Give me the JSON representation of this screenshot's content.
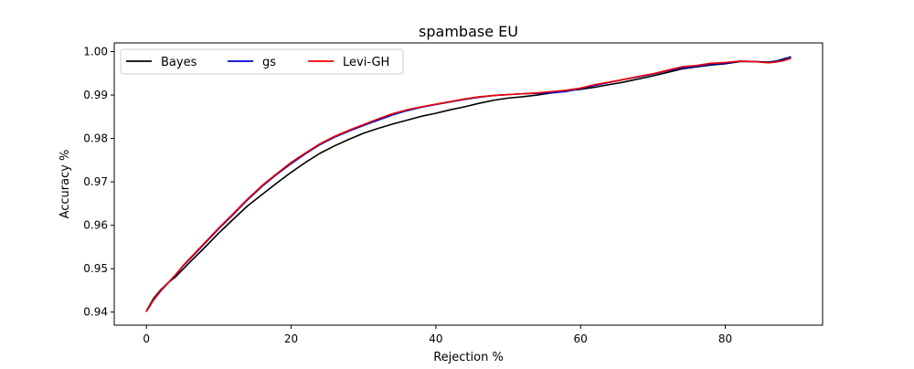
{
  "chart_data": {
    "type": "line",
    "title": "spambase EU",
    "xlabel": "Rejection %",
    "ylabel": "Accuracy %",
    "xlim": [
      -4.45,
      93.45
    ],
    "ylim": [
      0.937,
      1.002
    ],
    "xticks": [
      0,
      20,
      40,
      60,
      80
    ],
    "xtick_labels": [
      "0",
      "20",
      "40",
      "60",
      "80"
    ],
    "yticks": [
      0.94,
      0.95,
      0.96,
      0.97,
      0.98,
      0.99,
      1.0
    ],
    "ytick_labels": [
      "0.94",
      "0.95",
      "0.96",
      "0.97",
      "0.98",
      "0.99",
      "1.00"
    ],
    "grid": false,
    "legend_position": "upper-left",
    "legend_columns": 3,
    "series": [
      {
        "name": "Bayes",
        "color": "#000000",
        "x": [
          0,
          1,
          2,
          3,
          4,
          5,
          6,
          8,
          10,
          12,
          14,
          16,
          18,
          20,
          22,
          24,
          26,
          28,
          30,
          32,
          34,
          36,
          38,
          40,
          42,
          44,
          46,
          48,
          50,
          52,
          54,
          56,
          58,
          60,
          62,
          64,
          66,
          68,
          70,
          72,
          74,
          76,
          78,
          80,
          82,
          84,
          86,
          87,
          88,
          89
        ],
        "y": [
          0.9403,
          0.9432,
          0.9452,
          0.9468,
          0.9481,
          0.9498,
          0.9515,
          0.9548,
          0.9582,
          0.9614,
          0.9645,
          0.9671,
          0.9697,
          0.9722,
          0.9745,
          0.9766,
          0.9783,
          0.9798,
          0.9812,
          0.9823,
          0.9833,
          0.9842,
          0.9851,
          0.9858,
          0.9866,
          0.9873,
          0.9881,
          0.9888,
          0.9893,
          0.9896,
          0.99,
          0.9905,
          0.991,
          0.9913,
          0.9918,
          0.9924,
          0.993,
          0.9937,
          0.9944,
          0.9952,
          0.996,
          0.9965,
          0.9969,
          0.9972,
          0.9977,
          0.9977,
          0.9976,
          0.9978,
          0.9983,
          0.9987
        ]
      },
      {
        "name": "gs",
        "color": "#0000cc",
        "x": [
          0,
          1,
          2,
          3,
          4,
          5,
          6,
          8,
          10,
          12,
          14,
          16,
          18,
          20,
          22,
          24,
          26,
          28,
          30,
          32,
          34,
          36,
          38,
          40,
          42,
          44,
          46,
          48,
          50,
          52,
          54,
          56,
          58,
          60,
          62,
          64,
          66,
          68,
          70,
          72,
          74,
          76,
          78,
          80,
          82,
          84,
          86,
          87,
          88,
          89
        ],
        "y": [
          0.9402,
          0.9428,
          0.9449,
          0.9467,
          0.9485,
          0.9505,
          0.9522,
          0.9557,
          0.9592,
          0.9625,
          0.9659,
          0.969,
          0.9717,
          0.9742,
          0.9765,
          0.9786,
          0.9803,
          0.9817,
          0.983,
          0.9842,
          0.9854,
          0.9864,
          0.9872,
          0.9878,
          0.9884,
          0.989,
          0.9895,
          0.9899,
          0.9901,
          0.9903,
          0.9904,
          0.9905,
          0.9908,
          0.9915,
          0.9922,
          0.9929,
          0.9936,
          0.9942,
          0.9948,
          0.9956,
          0.9962,
          0.9966,
          0.9971,
          0.9973,
          0.9978,
          0.9977,
          0.9975,
          0.9977,
          0.9981,
          0.9988
        ]
      },
      {
        "name": "Levi-GH",
        "color": "#ee0000",
        "x": [
          0,
          1,
          2,
          3,
          4,
          5,
          6,
          8,
          10,
          12,
          14,
          16,
          18,
          20,
          22,
          24,
          26,
          28,
          30,
          32,
          34,
          36,
          38,
          40,
          42,
          44,
          46,
          48,
          50,
          52,
          54,
          56,
          58,
          60,
          62,
          64,
          66,
          68,
          70,
          72,
          74,
          76,
          78,
          80,
          82,
          84,
          86,
          87,
          88,
          89
        ],
        "y": [
          0.9402,
          0.9429,
          0.945,
          0.9468,
          0.9486,
          0.9506,
          0.9524,
          0.9559,
          0.9594,
          0.9627,
          0.9661,
          0.9692,
          0.9719,
          0.9745,
          0.9767,
          0.9788,
          0.9805,
          0.9819,
          0.9832,
          0.9845,
          0.9857,
          0.9866,
          0.9873,
          0.9879,
          0.9885,
          0.9891,
          0.9896,
          0.9899,
          0.9901,
          0.9903,
          0.9905,
          0.9908,
          0.9911,
          0.9916,
          0.9924,
          0.993,
          0.9936,
          0.9943,
          0.9949,
          0.9957,
          0.9965,
          0.9968,
          0.9973,
          0.9975,
          0.9978,
          0.9977,
          0.9974,
          0.9976,
          0.9979,
          0.9984
        ]
      }
    ]
  }
}
